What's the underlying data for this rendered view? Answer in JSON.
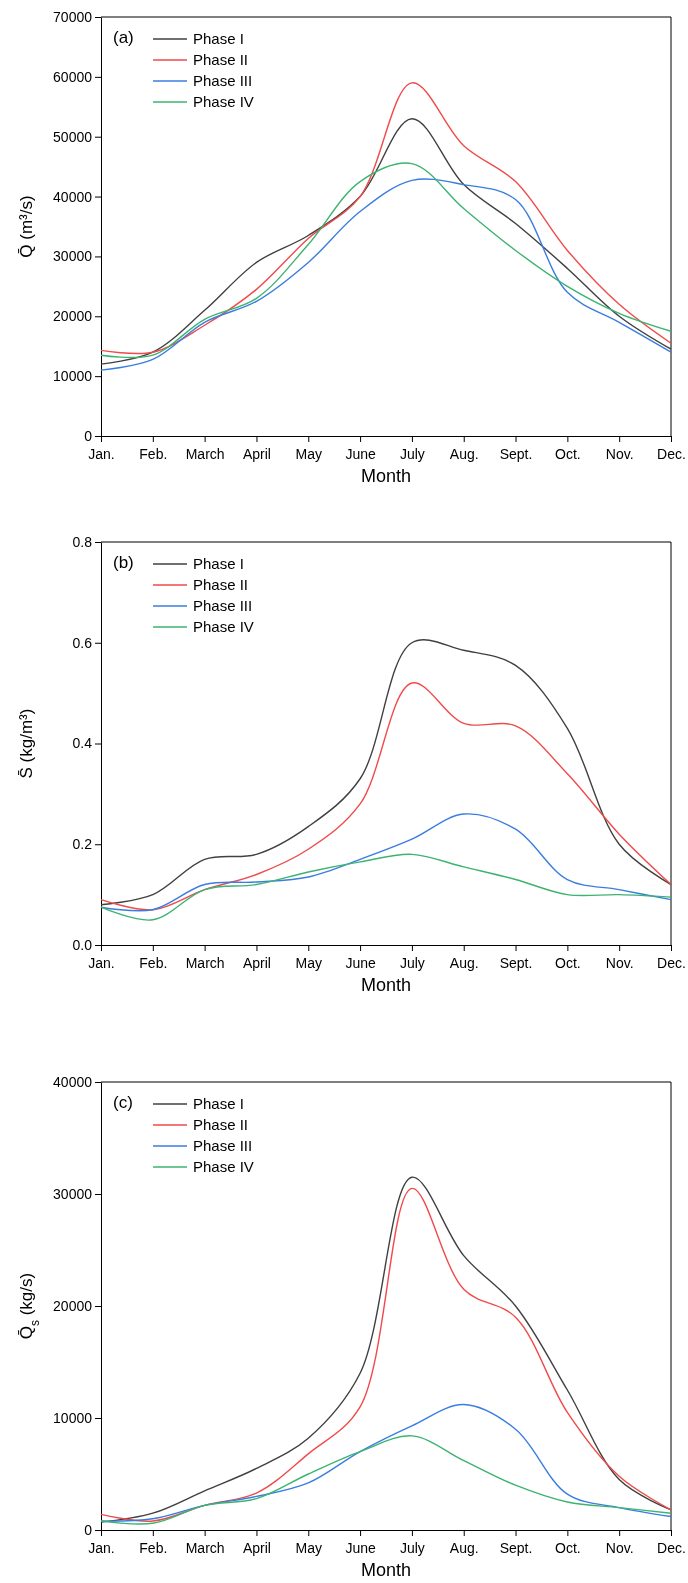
{
  "chart_data": [
    {
      "type": "line",
      "annotations": [
        "(a)"
      ],
      "xlabel": "Month",
      "ylabel": "Q̄ (m³/s)",
      "categories": [
        "Jan.",
        "Feb.",
        "March",
        "April",
        "May",
        "June",
        "July",
        "Aug.",
        "Sept.",
        "Oct.",
        "Nov.",
        "Dec."
      ],
      "ylim": [
        0,
        70000
      ],
      "yticks": [
        0,
        10000,
        20000,
        30000,
        40000,
        50000,
        60000,
        70000
      ],
      "legend": "top left",
      "grid": false,
      "series": [
        {
          "name": "Phase I",
          "color": "#404040",
          "values": [
            12000,
            14000,
            21000,
            29000,
            33500,
            40000,
            53000,
            42000,
            35500,
            28000,
            20000,
            14500
          ]
        },
        {
          "name": "Phase II",
          "color": "#f04a4a",
          "values": [
            14300,
            14000,
            18500,
            24500,
            33000,
            40000,
            59000,
            48500,
            42500,
            31000,
            22000,
            15500
          ]
        },
        {
          "name": "Phase III",
          "color": "#3a7de0",
          "values": [
            11000,
            12800,
            19000,
            22500,
            29000,
            37500,
            42700,
            42000,
            39500,
            24000,
            19000,
            14000
          ]
        },
        {
          "name": "Phase IV",
          "color": "#3cb371",
          "values": [
            13500,
            13500,
            19500,
            23000,
            32000,
            42500,
            45500,
            38000,
            31000,
            25000,
            20500,
            17500
          ]
        }
      ]
    },
    {
      "type": "line",
      "annotations": [
        "(b)"
      ],
      "xlabel": "Month",
      "ylabel": "S̄ (kg/m³)",
      "categories": [
        "Jan.",
        "Feb.",
        "March",
        "April",
        "May",
        "June",
        "July",
        "Aug.",
        "Sept.",
        "Oct.",
        "Nov.",
        "Dec."
      ],
      "ylim": [
        0,
        0.8
      ],
      "yticks": [
        {
          "value": 0,
          "label": "0.0"
        },
        {
          "value": 0.2,
          "label": "0.2"
        },
        {
          "value": 0.4,
          "label": "0.4"
        },
        {
          "value": 0.6,
          "label": "0.6"
        },
        {
          "value": 0.8,
          "label": "0.8"
        }
      ],
      "legend": "top left",
      "grid": false,
      "series": [
        {
          "name": "Phase I",
          "color": "#404040",
          "values": [
            0.08,
            0.1,
            0.17,
            0.18,
            0.235,
            0.33,
            0.6,
            0.585,
            0.555,
            0.43,
            0.2,
            0.12
          ]
        },
        {
          "name": "Phase II",
          "color": "#f04a4a",
          "values": [
            0.09,
            0.07,
            0.11,
            0.14,
            0.19,
            0.28,
            0.52,
            0.44,
            0.435,
            0.34,
            0.22,
            0.12
          ]
        },
        {
          "name": "Phase III",
          "color": "#3a7de0",
          "values": [
            0.075,
            0.07,
            0.12,
            0.125,
            0.135,
            0.17,
            0.21,
            0.26,
            0.23,
            0.13,
            0.11,
            0.09
          ]
        },
        {
          "name": "Phase IV",
          "color": "#3cb371",
          "values": [
            0.075,
            0.05,
            0.11,
            0.12,
            0.145,
            0.165,
            0.18,
            0.155,
            0.13,
            0.1,
            0.1,
            0.095
          ]
        }
      ]
    },
    {
      "type": "line",
      "annotations": [
        "(c)"
      ],
      "xlabel": "Month",
      "ylabel": "Q̄$_{s}$ (kg/s)",
      "categories": [
        "Jan.",
        "Feb.",
        "March",
        "April",
        "May",
        "June",
        "July",
        "Aug.",
        "Sept.",
        "Oct.",
        "Nov.",
        "Dec."
      ],
      "ylim": [
        0,
        40000
      ],
      "yticks": [
        0,
        10000,
        20000,
        30000,
        40000
      ],
      "legend": "top left",
      "grid": false,
      "series": [
        {
          "name": "Phase I",
          "color": "#404040",
          "values": [
            700,
            1500,
            3500,
            5500,
            8200,
            14000,
            31500,
            24500,
            20000,
            12500,
            4500,
            1800
          ]
        },
        {
          "name": "Phase II",
          "color": "#f04a4a",
          "values": [
            1400,
            800,
            2200,
            3300,
            6800,
            11000,
            30500,
            21500,
            19000,
            10500,
            4800,
            1800
          ]
        },
        {
          "name": "Phase III",
          "color": "#3a7de0",
          "values": [
            800,
            1000,
            2200,
            3000,
            4200,
            7000,
            9300,
            11200,
            9000,
            3200,
            2000,
            1200
          ]
        },
        {
          "name": "Phase IV",
          "color": "#3cb371",
          "values": [
            800,
            600,
            2200,
            2800,
            5000,
            7000,
            8400,
            6200,
            4000,
            2500,
            2000,
            1500
          ]
        }
      ]
    }
  ]
}
